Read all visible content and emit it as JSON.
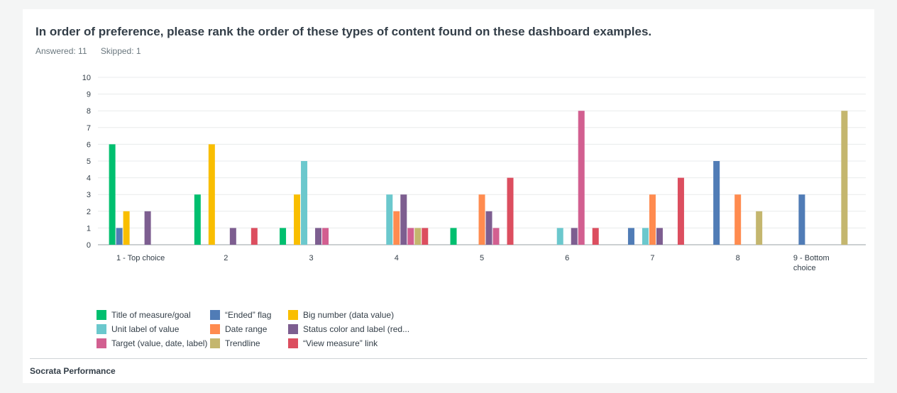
{
  "question": "In order of preference, please rank the order of these types of content found on these dashboard examples.",
  "stats": {
    "answered": "Answered: 11",
    "skipped": "Skipped: 1"
  },
  "footer": "Socrata Performance",
  "chart_data": {
    "type": "bar",
    "categories": [
      "1 - Top choice",
      "2",
      "3",
      "4",
      "5",
      "6",
      "7",
      "8",
      "9 - Bottom choice"
    ],
    "ylim": [
      0,
      10
    ],
    "yticks": [
      0,
      1,
      2,
      3,
      4,
      5,
      6,
      7,
      8,
      9,
      10
    ],
    "grid": true,
    "legend_position": "bottom-left",
    "series": [
      {
        "name": "Title of measure/goal",
        "color": "#00bf6f",
        "values": [
          6,
          3,
          1,
          0,
          1,
          0,
          0,
          0,
          0
        ]
      },
      {
        "name": "“Ended” flag",
        "color": "#507cb6",
        "values": [
          1,
          0,
          0,
          0,
          0,
          0,
          1,
          5,
          3
        ]
      },
      {
        "name": "Big number (data value)",
        "color": "#f9be00",
        "values": [
          2,
          6,
          3,
          0,
          0,
          0,
          0,
          0,
          0
        ]
      },
      {
        "name": "Unit label of value",
        "color": "#6bc8cd",
        "values": [
          0,
          0,
          5,
          3,
          0,
          1,
          1,
          0,
          0
        ]
      },
      {
        "name": "Date range",
        "color": "#ff8b4f",
        "values": [
          0,
          0,
          0,
          2,
          3,
          0,
          3,
          3,
          0
        ]
      },
      {
        "name": "Status color and label (red...",
        "color": "#7d5e90",
        "values": [
          2,
          1,
          1,
          3,
          2,
          1,
          1,
          0,
          0
        ]
      },
      {
        "name": "Target (value, date, label)",
        "color": "#d25f90",
        "values": [
          0,
          0,
          1,
          1,
          1,
          8,
          0,
          0,
          0
        ]
      },
      {
        "name": "Trendline",
        "color": "#c4b66e",
        "values": [
          0,
          0,
          0,
          1,
          0,
          0,
          0,
          2,
          8
        ]
      },
      {
        "name": "“View measure” link",
        "color": "#dc4e5f",
        "values": [
          0,
          1,
          0,
          1,
          4,
          1,
          4,
          0,
          0
        ]
      }
    ]
  }
}
